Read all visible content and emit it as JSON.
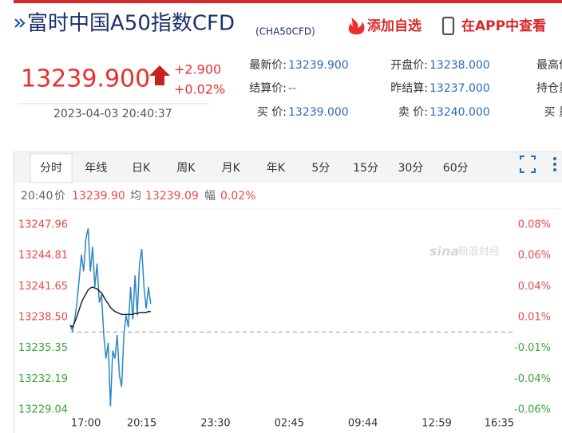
{
  "header": {
    "title": "富时中国A50指数CFD",
    "code": "(CHA50CFD)",
    "add_watchlist": "添加自选",
    "open_app": "在APP中查看"
  },
  "quote": {
    "price": "13239.900",
    "change": "+2.900",
    "change_pct": "+0.02%",
    "time": "2023-04-03 20:40:37",
    "fields": [
      {
        "label": "最新价:",
        "value": "13239.900",
        "color": "#e8312f"
      },
      {
        "label": "开盘价:",
        "value": "13238.000"
      },
      {
        "label": "最高价"
      },
      {
        "label": "结算价:",
        "value": "--"
      },
      {
        "label": "昨结算:",
        "value": "13237.000"
      },
      {
        "label": "持仓量"
      },
      {
        "label": "买 价:",
        "value": "13239.000"
      },
      {
        "label": "卖 价:",
        "value": "13240.000"
      },
      {
        "label": "买 量"
      }
    ]
  },
  "tabs": {
    "items": [
      "分时",
      "年线",
      "日K",
      "周K",
      "月K",
      "年K",
      "5分",
      "15分",
      "30分",
      "60分"
    ],
    "active": 0
  },
  "info": {
    "time": "20:40",
    "price_label": "价",
    "price": "13239.90",
    "avg_label": "均",
    "avg": "13239.09",
    "amp_label": "幅",
    "amp": "0.02%"
  },
  "watermark": {
    "logo": "sina",
    "name": "新浪财经"
  },
  "chart_data": {
    "type": "line",
    "categories": [
      null,
      null,
      null,
      null,
      null,
      null,
      null,
      "17:00",
      null,
      null,
      null,
      null,
      null,
      null,
      null,
      null,
      null,
      null,
      null,
      null,
      null,
      null,
      null,
      null,
      null,
      null,
      null,
      null,
      null,
      null,
      null,
      null,
      "20:15",
      null,
      null,
      null,
      null,
      null,
      null,
      null,
      null,
      null,
      null,
      null,
      null,
      null,
      null,
      null,
      null,
      null,
      null,
      null,
      null,
      null,
      null,
      null,
      null,
      null,
      null,
      null,
      null,
      null,
      null,
      null,
      null,
      "23:30",
      null,
      null,
      null,
      null,
      null,
      null,
      null,
      null,
      null,
      null,
      null,
      null,
      null,
      null,
      null,
      null,
      null,
      null,
      null,
      null,
      null,
      null,
      null,
      null,
      null,
      null,
      null,
      null,
      null,
      null,
      null,
      null,
      "02:45",
      null,
      null,
      null,
      null,
      null,
      null,
      null,
      null,
      null,
      null,
      null,
      null,
      null,
      null,
      null,
      null,
      null,
      null,
      null,
      null,
      null,
      null,
      null,
      null,
      null,
      null,
      null,
      null,
      null,
      null,
      null,
      null,
      "09:44",
      null,
      null,
      null,
      null,
      null,
      null,
      null,
      null,
      null,
      null,
      null,
      null,
      null,
      null,
      null,
      null,
      null,
      null,
      null,
      null,
      null,
      null,
      null,
      null,
      null,
      null,
      null,
      null,
      null,
      null,
      null,
      null,
      "12:59",
      null,
      null,
      null,
      null,
      null,
      null,
      null,
      null,
      null,
      null,
      null,
      null,
      null,
      null,
      null,
      null,
      null,
      null,
      null,
      null,
      null,
      null,
      null,
      null,
      null,
      null,
      null,
      "16:35",
      null,
      null,
      null,
      null,
      null,
      null,
      null
    ],
    "series": [
      {
        "color": "#2b86c5",
        "values": [
          13237.7,
          13237.1,
          13238.3,
          13240.0,
          13242.4,
          13244.9,
          13243.2,
          13246.5,
          13247.6,
          13243.2,
          13245.7,
          13241.6,
          13244.0,
          13240.0,
          13240.8,
          13236.7,
          13234.3,
          13235.9,
          13229.4,
          13235.1,
          13234.3,
          13236.7,
          13232.6,
          13231.4,
          13236.7,
          13238.7,
          13237.5,
          13241.6,
          13238.3,
          13242.8,
          13238.7,
          13244.0,
          13245.5,
          13241.6,
          13239.4,
          13241.6,
          13239.9,
          null,
          null,
          null,
          null,
          null,
          null,
          null,
          null,
          null,
          null,
          null,
          null,
          null,
          null,
          null,
          null,
          null,
          null,
          null,
          null,
          null,
          null,
          null,
          null,
          null,
          null,
          null,
          null,
          null,
          null,
          null,
          null,
          null,
          null,
          null,
          null,
          null,
          null,
          null,
          null,
          null,
          null,
          null,
          null,
          null,
          null,
          null,
          null,
          null,
          null,
          null,
          null,
          null,
          null,
          null,
          null,
          null,
          null,
          null,
          null,
          null,
          null,
          null,
          null,
          null,
          null,
          null,
          null,
          null,
          null,
          null,
          null,
          null,
          null,
          null,
          null,
          null,
          null,
          null,
          null,
          null,
          null,
          null,
          null,
          null,
          null,
          null,
          null,
          null,
          null,
          null,
          null,
          null,
          null,
          null,
          null,
          null,
          null,
          null,
          null,
          null,
          null,
          null,
          null,
          null,
          null,
          null,
          null,
          null,
          null,
          null,
          null,
          null,
          null,
          null,
          null,
          null,
          null,
          null,
          null,
          null,
          null,
          null,
          null,
          null,
          null,
          null,
          null,
          null,
          null,
          null,
          null,
          null,
          null,
          null,
          null,
          null,
          null,
          null,
          null,
          null,
          null,
          null,
          null,
          null,
          null,
          null,
          null,
          null,
          null,
          null,
          null,
          null,
          null,
          null,
          null,
          null,
          null,
          null,
          null,
          null,
          null,
          null
        ]
      },
      {
        "color": "#222222",
        "values": [
          13237.7,
          13237.5,
          13238.0,
          13238.6,
          13239.3,
          13240.0,
          13240.5,
          13240.9,
          13241.3,
          13241.5,
          13241.6,
          13241.5,
          13241.4,
          13241.2,
          13241.0,
          13240.6,
          13240.2,
          13239.9,
          13239.5,
          13239.3,
          13239.1,
          13239.0,
          13238.9,
          13238.8,
          13238.8,
          13238.8,
          13238.8,
          13238.8,
          13238.8,
          13238.9,
          13238.9,
          13239.0,
          13239.0,
          13239.0,
          13239.0,
          13239.1,
          13239.09,
          null,
          null,
          null,
          null,
          null,
          null,
          null,
          null,
          null,
          null,
          null,
          null,
          null,
          null,
          null,
          null,
          null,
          null,
          null,
          null,
          null,
          null,
          null,
          null,
          null,
          null,
          null,
          null,
          null,
          null,
          null,
          null,
          null,
          null,
          null,
          null,
          null,
          null,
          null,
          null,
          null,
          null,
          null,
          null,
          null,
          null,
          null,
          null,
          null,
          null,
          null,
          null,
          null,
          null,
          null,
          null,
          null,
          null,
          null,
          null,
          null,
          null,
          null,
          null,
          null,
          null,
          null,
          null,
          null,
          null,
          null,
          null,
          null,
          null,
          null,
          null,
          null,
          null,
          null,
          null,
          null,
          null,
          null,
          null,
          null,
          null,
          null,
          null,
          null,
          null,
          null,
          null,
          null,
          null,
          null,
          null,
          null,
          null,
          null,
          null,
          null,
          null,
          null,
          null,
          null,
          null,
          null,
          null,
          null,
          null,
          null,
          null,
          null,
          null,
          null,
          null,
          null,
          null,
          null,
          null,
          null,
          null,
          null,
          null,
          null,
          null,
          null,
          null,
          null,
          null,
          null,
          null,
          null,
          null,
          null,
          null,
          null,
          null,
          null,
          null,
          null,
          null,
          null,
          null,
          null,
          null,
          null,
          null,
          null,
          null,
          null,
          null,
          null,
          null,
          null,
          null,
          null,
          null,
          null,
          null,
          null,
          null,
          null
        ]
      }
    ],
    "ylim": [
      13229.04,
      13247.96
    ],
    "yticks": [
      13229.04,
      13232.19,
      13235.35,
      {
        "value": 13238.5,
        "label": "13238.50"
      },
      13241.65,
      13244.81,
      13247.96
    ],
    "y2lim": [
      -0.0601,
      0.0828
    ],
    "y2ticks": [
      {
        "value": -0.0601,
        "label": "-0.06%"
      },
      {
        "value": -0.0363,
        "label": "-0.04%"
      },
      {
        "value": -0.0125,
        "label": "-0.01%"
      },
      {
        "value": 0.0113,
        "label": "0.01%"
      },
      {
        "value": 0.0351,
        "label": "0.04%"
      },
      {
        "value": 0.059,
        "label": "0.06%"
      },
      {
        "value": 0.0828,
        "label": "0.08%"
      }
    ],
    "baseline": 13237,
    "up_color": "#e8494a",
    "down_color": "#3aa53a"
  }
}
